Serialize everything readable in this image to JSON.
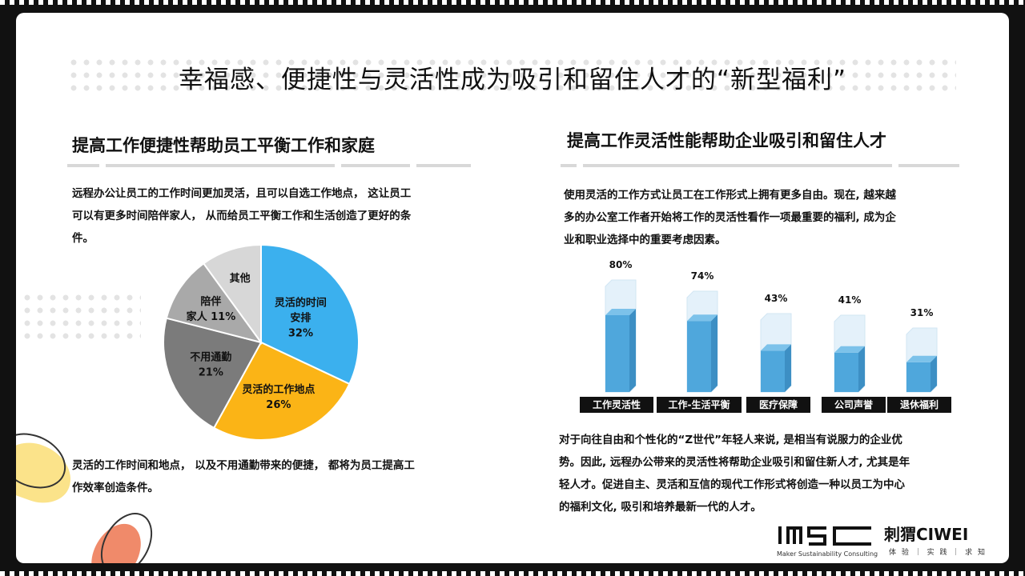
{
  "title": "幸福感、便捷性与灵活性成为吸引和留住人才的“新型福利”",
  "left": {
    "heading": "提高工作便捷性帮助员工平衡工作和家庭",
    "intro_lines": [
      "远程办公让员工的工作时间更加灵活，且可以自选工作地点， 这让员工",
      "可以有更多时间陪伴家人， 从而给员工平衡工作和生活创造了更好的条",
      "件。"
    ],
    "conclusion_lines": [
      "灵活的工作时间和地点， 以及不用通勤带来的便捷， 都将为员工提高工",
      "作效率创造条件。"
    ]
  },
  "right": {
    "heading": "提高工作灵活性能帮助企业吸引和留住人才",
    "intro_lines": [
      "使用灵活的工作方式让员工在工作形式上拥有更多自由。现在, 越来越",
      "多的办公室工作者开始将工作的灵活性看作一项最重要的福利, 成为企",
      "业和职业选择中的重要考虑因素。"
    ],
    "conclusion_lines": [
      "对于向往自由和个性化的“Z世代”年轻人来说, 是相当有说服力的企业优",
      "势。因此, 远程办公带来的灵活性将帮助企业吸引和留住新人才, 尤其是年",
      "轻人才。促进自主、灵活和互信的现代工作形式将创造一种以员工为中心",
      "的福利文化, 吸引和培养最新一代的人才。"
    ]
  },
  "chart_data": [
    {
      "type": "pie",
      "slices": [
        {
          "label_lines": [
            "灵活的时间",
            "安排",
            "32%"
          ],
          "value": 32,
          "color": "#3bb0ee"
        },
        {
          "label_lines": [
            "灵活的工作地点",
            "26%"
          ],
          "value": 26,
          "color": "#fbb416"
        },
        {
          "label_lines": [
            "不用通勤",
            "21%"
          ],
          "value": 21,
          "color": "#7b7b7b"
        },
        {
          "label_lines": [
            "陪伴",
            "家人 11%"
          ],
          "value": 11,
          "color": "#a9a9a9"
        },
        {
          "label_lines": [
            "其他"
          ],
          "value": 10,
          "color": "#d7d7d7"
        }
      ]
    },
    {
      "type": "bar",
      "categories": [
        "工作灵活性",
        "工作-生活平衡",
        "医疗保障",
        "公司声誉",
        "退休福利"
      ],
      "values": [
        80,
        74,
        43,
        41,
        31
      ],
      "value_labels": [
        "80%",
        "74%",
        "43%",
        "41%",
        "31%"
      ],
      "ylim": [
        0,
        100
      ],
      "bar_color": "#4fa7dc"
    }
  ],
  "logos": {
    "msc_sub": "Maker Sustainability Consulting",
    "ciwei_name": "刺猬CIWEI",
    "ciwei_tag": "体 验 ｜ 实 践 ｜ 求 知"
  }
}
